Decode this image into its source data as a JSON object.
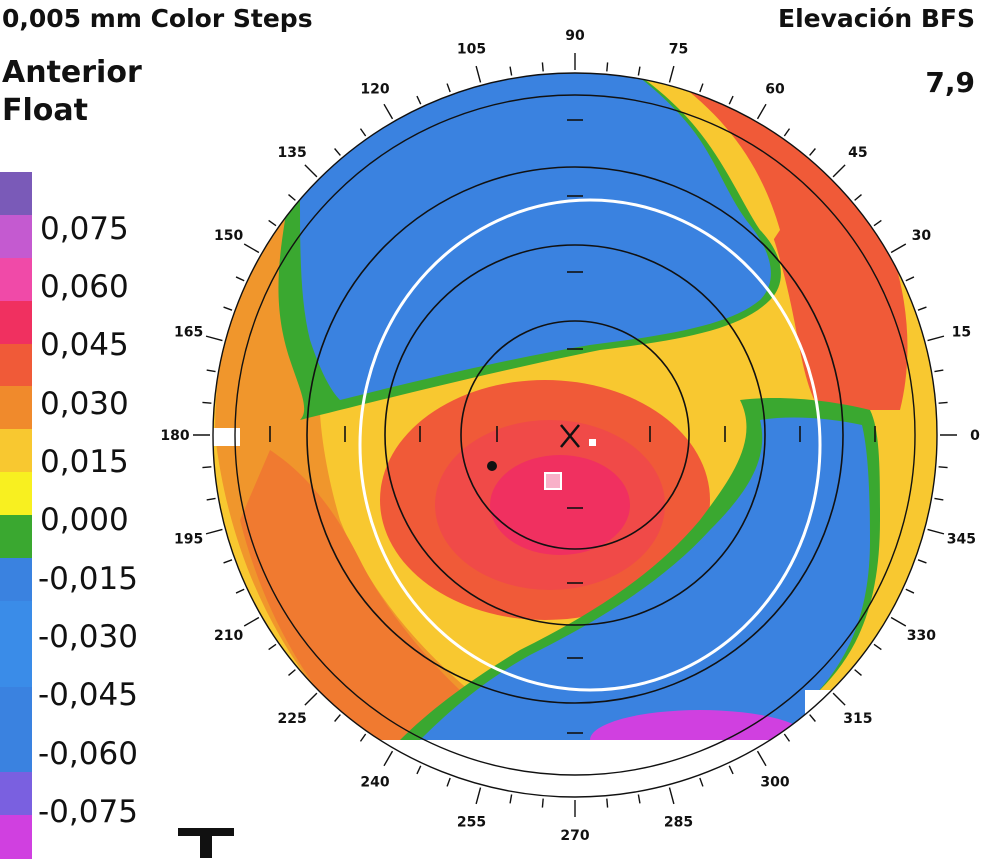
{
  "header": {
    "color_steps": "0,005 mm Color Steps",
    "map_type_line1": "Anterior",
    "map_type_line2": "Float",
    "right_title": "Elevación BFS",
    "right_value": "7,9"
  },
  "scale": {
    "labels": [
      "0,075",
      "0,060",
      "0,045",
      "0,030",
      "0,015",
      "0,000",
      "-0,015",
      "-0,030",
      "-0,045",
      "-0,060",
      "-0,075"
    ],
    "colors": [
      "#7a5ab8",
      "#c45ad0",
      "#f04aa8",
      "#f03060",
      "#f05a38",
      "#f08a2c",
      "#f8c830",
      "#f8f020",
      "#3aa830",
      "#3a82e0",
      "#3a8ce8",
      "#3a8ce8",
      "#3a82e0",
      "#3a82e0",
      "#7a60e0",
      "#d040e0"
    ]
  },
  "map": {
    "degree_labels": [
      "0",
      "15",
      "30",
      "45",
      "60",
      "75",
      "90",
      "105",
      "120",
      "135",
      "150",
      "165",
      "180",
      "195",
      "210",
      "225",
      "240",
      "255",
      "270",
      "285",
      "300",
      "315",
      "330",
      "345"
    ]
  }
}
